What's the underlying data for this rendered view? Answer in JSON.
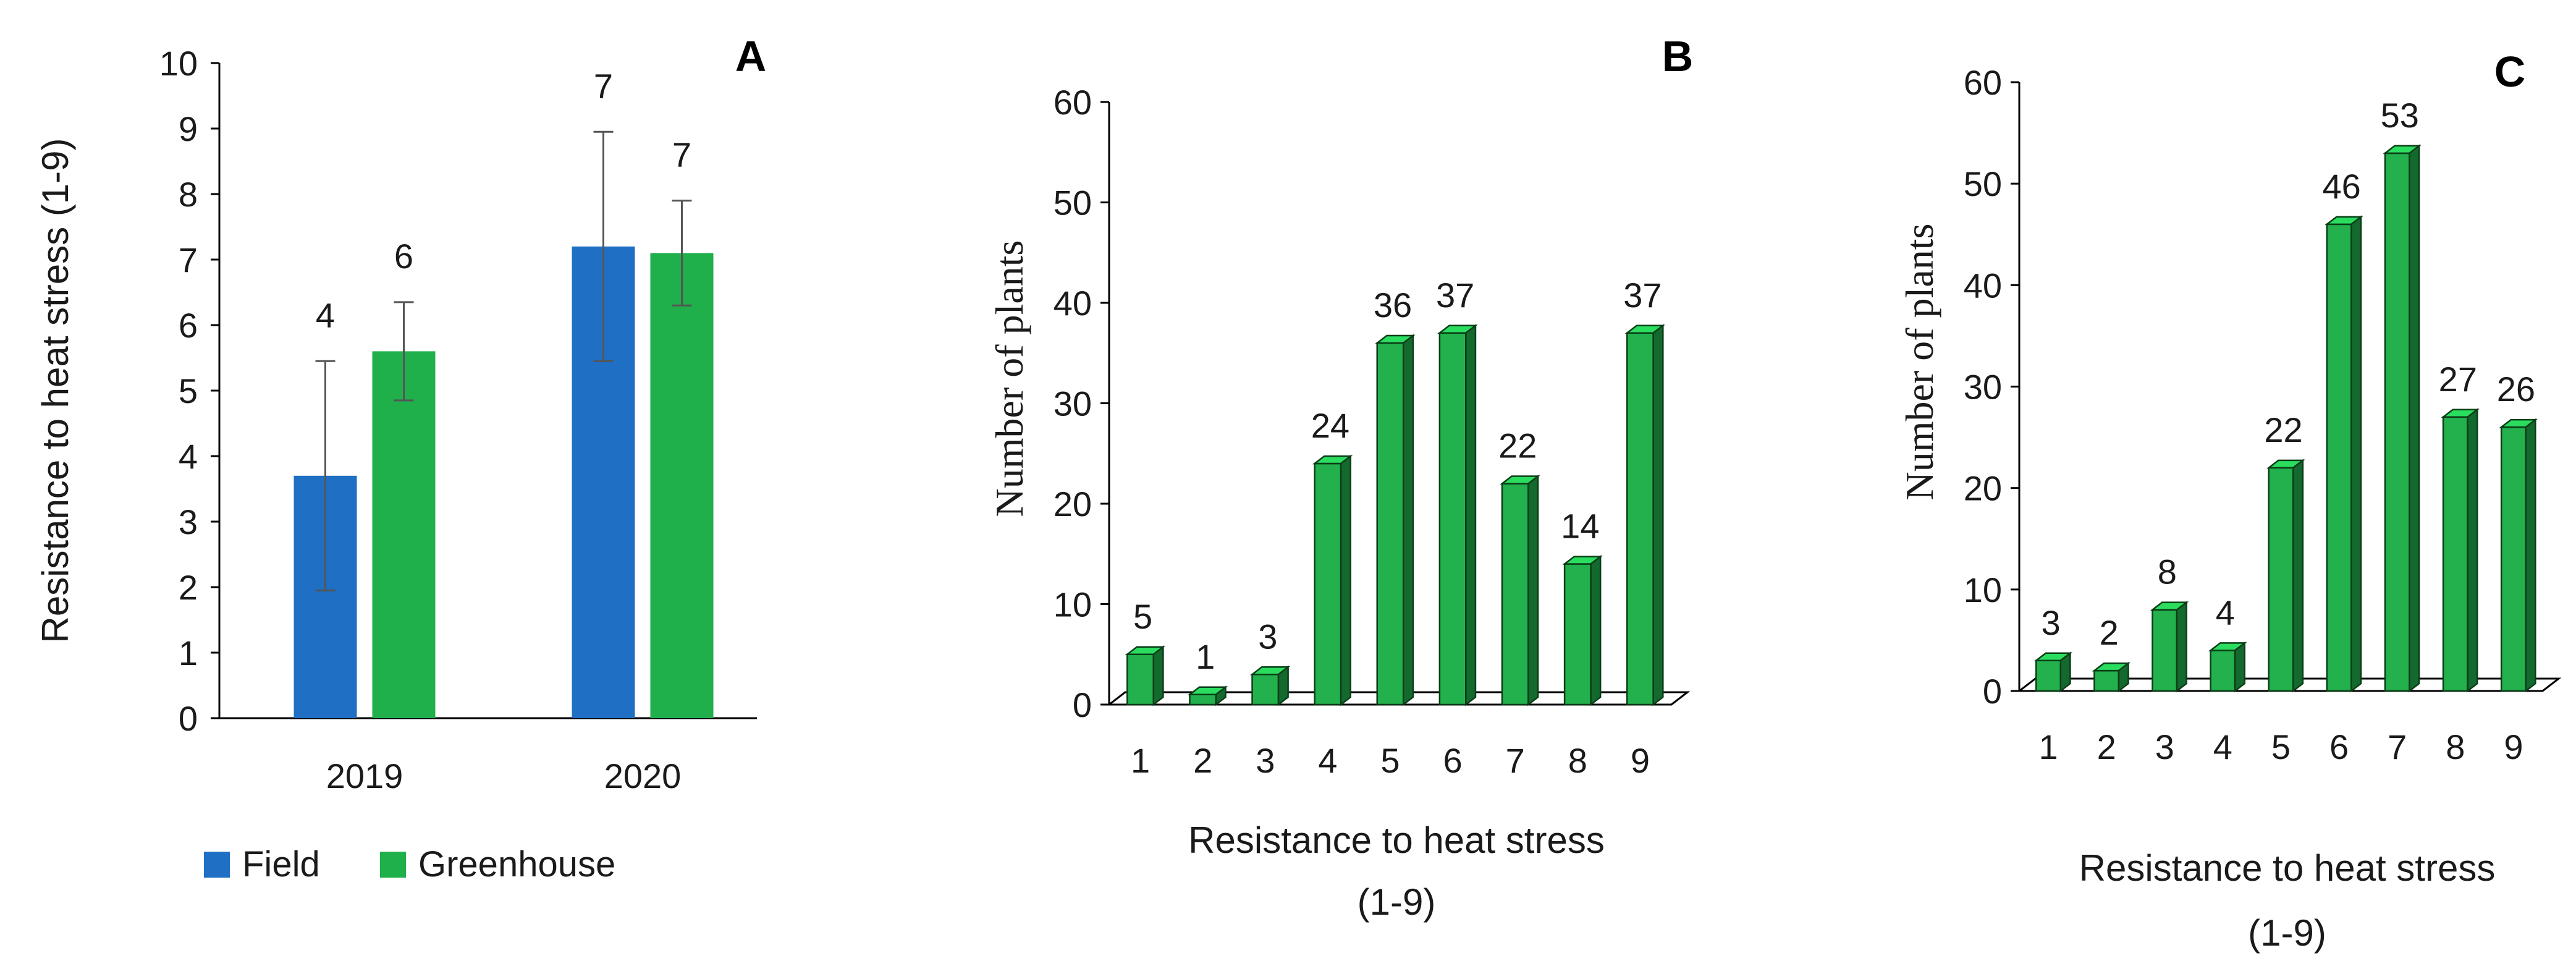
{
  "chart_data": [
    {
      "type": "bar",
      "panel": "A",
      "categories": [
        "2019",
        "2020"
      ],
      "series": [
        {
          "name": "Field",
          "values": [
            3.7,
            7.2
          ],
          "errors": [
            1.75,
            1.75
          ],
          "labels": [
            "4",
            "7"
          ],
          "color": "#1f6fc5"
        },
        {
          "name": "Greenhouse",
          "values": [
            5.6,
            7.1
          ],
          "errors": [
            0.75,
            0.8
          ],
          "labels": [
            "6",
            "7"
          ],
          "color": "#1fb04b"
        }
      ],
      "xlabel": "",
      "ylabel": "Resistance to heat stress (1-9)",
      "ylim": [
        0,
        10
      ],
      "yticks": [
        "0",
        "1",
        "2",
        "3",
        "4",
        "5",
        "6",
        "7",
        "8",
        "9",
        "10"
      ],
      "legend": "bottom",
      "grid": false
    },
    {
      "type": "bar",
      "panel": "B",
      "categories": [
        "1",
        "2",
        "3",
        "4",
        "5",
        "6",
        "7",
        "8",
        "9"
      ],
      "values": [
        5,
        1,
        3,
        24,
        36,
        37,
        22,
        14,
        37
      ],
      "labels": [
        "5",
        "1",
        "3",
        "24",
        "36",
        "37",
        "22",
        "14",
        "37"
      ],
      "color": "#22b14c",
      "xlabel": "Resistance to heat stress",
      "xlabel2": "(1-9)",
      "ylabel": "Number of plants",
      "ylim": [
        0,
        60
      ],
      "yticks": [
        "0",
        "10",
        "20",
        "30",
        "40",
        "50",
        "60"
      ],
      "grid": false
    },
    {
      "type": "bar",
      "panel": "C",
      "categories": [
        "1",
        "2",
        "3",
        "4",
        "5",
        "6",
        "7",
        "8",
        "9"
      ],
      "values": [
        3,
        2,
        8,
        4,
        22,
        46,
        53,
        27,
        26
      ],
      "labels": [
        "3",
        "2",
        "8",
        "4",
        "22",
        "46",
        "53",
        "27",
        "26"
      ],
      "color": "#22b14c",
      "xlabel": "Resistance to heat stress",
      "xlabel2": "(1-9)",
      "ylabel": "Number of plants",
      "ylim": [
        0,
        60
      ],
      "yticks": [
        "0",
        "10",
        "20",
        "30",
        "40",
        "50",
        "60"
      ],
      "grid": false
    }
  ]
}
